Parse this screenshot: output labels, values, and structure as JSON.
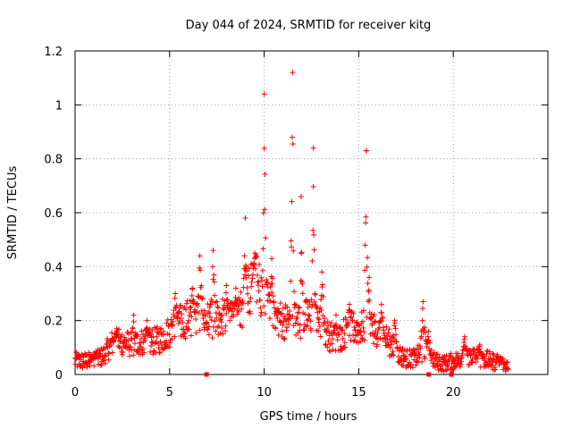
{
  "chart_data": {
    "type": "scatter",
    "title": "Day 044 of 2024, SRMTID for receiver kitg",
    "xlabel": "GPS time / hours",
    "ylabel": "SRMTID / TECUs",
    "xlim": [
      0,
      25
    ],
    "ylim": [
      0,
      1.2
    ],
    "xticks": [
      "0",
      "5",
      "10",
      "15",
      "20"
    ],
    "yticks": [
      "0",
      "0.2",
      "0.4",
      "0.6",
      "0.8",
      "1",
      "1.2"
    ],
    "grid": true,
    "marker": "plus",
    "color": "#ff0000",
    "baseline": [
      [
        0.0,
        0.05
      ],
      [
        0.5,
        0.05
      ],
      [
        1.0,
        0.05
      ],
      [
        1.5,
        0.07
      ],
      [
        2.0,
        0.12
      ],
      [
        2.5,
        0.12
      ],
      [
        3.0,
        0.11
      ],
      [
        3.5,
        0.12
      ],
      [
        4.0,
        0.12
      ],
      [
        4.5,
        0.13
      ],
      [
        5.0,
        0.16
      ],
      [
        5.5,
        0.19
      ],
      [
        6.0,
        0.21
      ],
      [
        6.5,
        0.22
      ],
      [
        7.0,
        0.2
      ],
      [
        7.5,
        0.21
      ],
      [
        8.0,
        0.22
      ],
      [
        8.5,
        0.2
      ],
      [
        9.0,
        0.28
      ],
      [
        9.5,
        0.36
      ],
      [
        10.0,
        0.28
      ],
      [
        10.5,
        0.22
      ],
      [
        11.0,
        0.2
      ],
      [
        11.5,
        0.2
      ],
      [
        12.0,
        0.2
      ],
      [
        12.5,
        0.22
      ],
      [
        13.0,
        0.17
      ],
      [
        13.5,
        0.14
      ],
      [
        14.0,
        0.14
      ],
      [
        14.5,
        0.17
      ],
      [
        15.0,
        0.17
      ],
      [
        15.5,
        0.18
      ],
      [
        16.0,
        0.16
      ],
      [
        16.5,
        0.13
      ],
      [
        17.0,
        0.08
      ],
      [
        17.5,
        0.06
      ],
      [
        18.0,
        0.06
      ],
      [
        18.5,
        0.1
      ],
      [
        19.0,
        0.05
      ],
      [
        19.5,
        0.04
      ],
      [
        20.0,
        0.05
      ],
      [
        20.5,
        0.06
      ],
      [
        21.0,
        0.07
      ],
      [
        21.5,
        0.06
      ],
      [
        22.0,
        0.05
      ],
      [
        22.5,
        0.04
      ],
      [
        22.9,
        0.03
      ]
    ],
    "peaks": [
      [
        1.0,
        0.08
      ],
      [
        2.2,
        0.17
      ],
      [
        3.1,
        0.22
      ],
      [
        3.8,
        0.2
      ],
      [
        5.3,
        0.3
      ],
      [
        6.2,
        0.32
      ],
      [
        6.6,
        0.44
      ],
      [
        7.3,
        0.46
      ],
      [
        8.0,
        0.33
      ],
      [
        8.5,
        0.32
      ],
      [
        9.0,
        0.58
      ],
      [
        9.5,
        0.45
      ],
      [
        10.0,
        1.04
      ],
      [
        10.4,
        0.43
      ],
      [
        11.5,
        1.12
      ],
      [
        11.95,
        0.66
      ],
      [
        12.6,
        0.84
      ],
      [
        13.05,
        0.38
      ],
      [
        13.8,
        0.22
      ],
      [
        14.5,
        0.26
      ],
      [
        15.4,
        0.83
      ],
      [
        15.55,
        0.36
      ],
      [
        16.2,
        0.26
      ],
      [
        16.9,
        0.2
      ],
      [
        18.4,
        0.27
      ],
      [
        18.7,
        0.16
      ],
      [
        20.6,
        0.14
      ],
      [
        21.4,
        0.11
      ],
      [
        22.4,
        0.06
      ]
    ],
    "markers_at_zero": [
      6.95,
      18.7,
      19.9
    ]
  }
}
